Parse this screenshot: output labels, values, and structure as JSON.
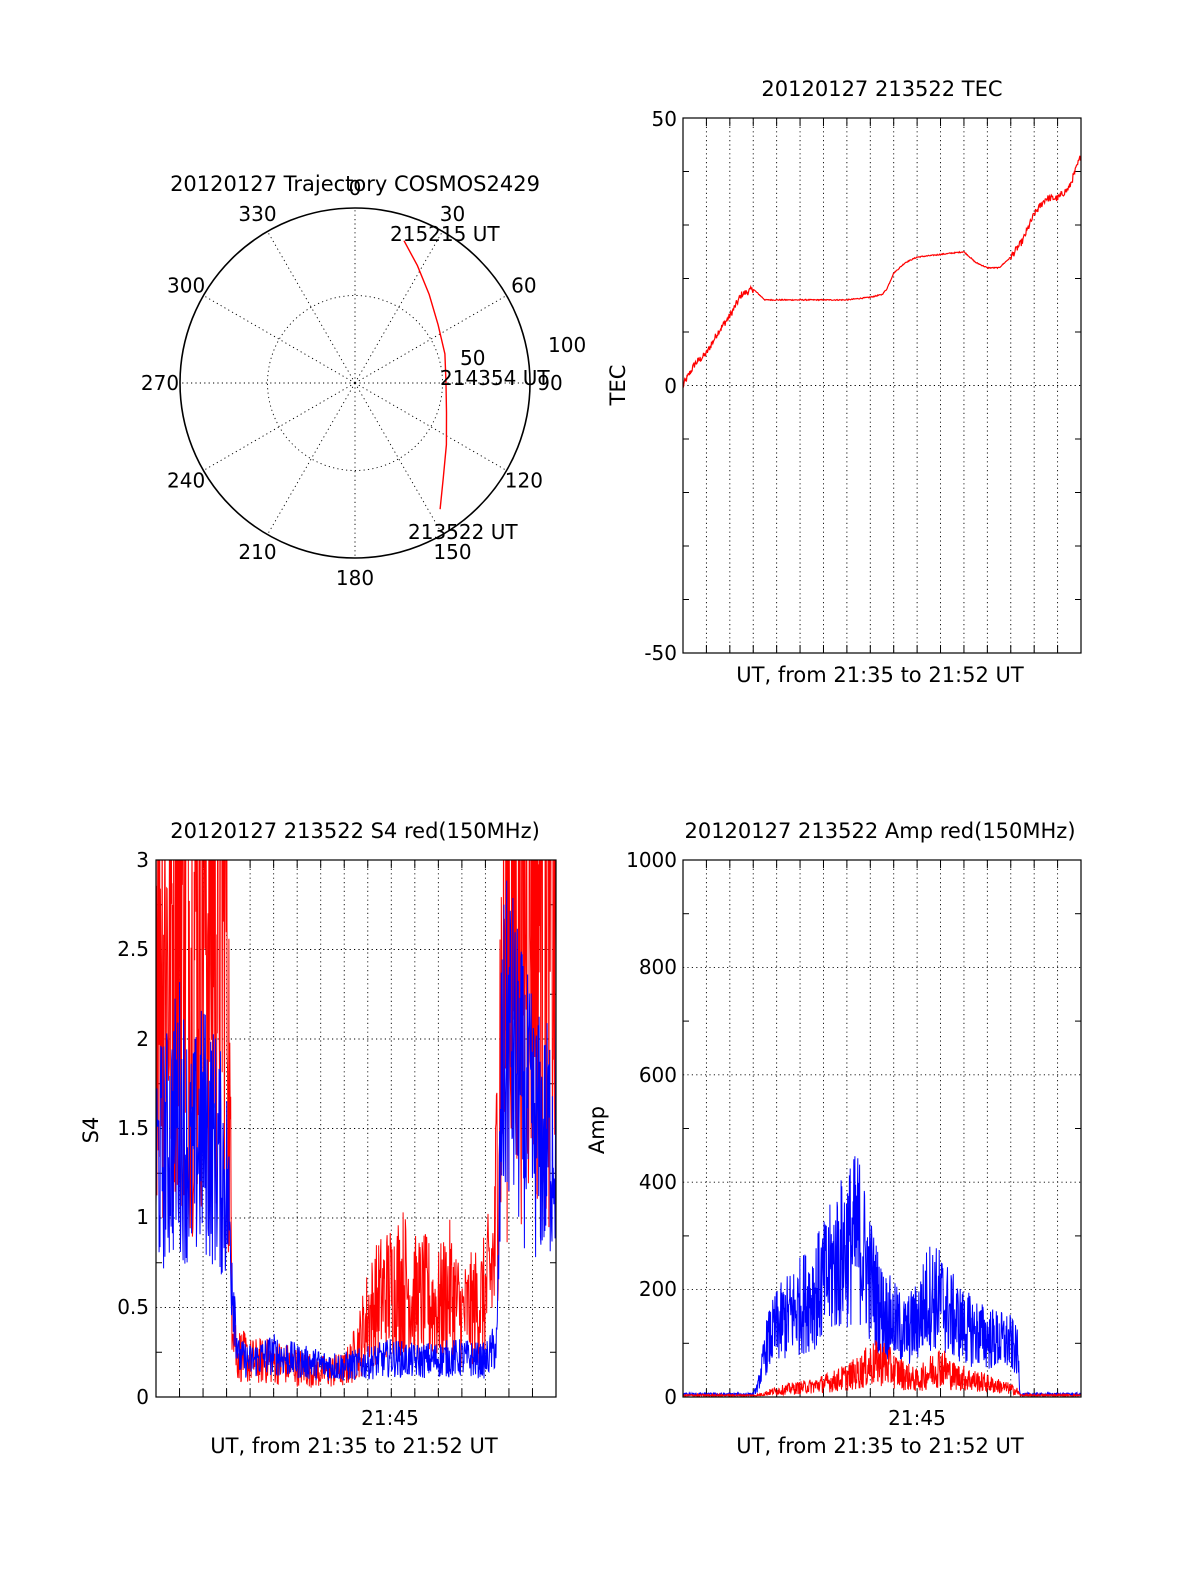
{
  "chart_data": [
    {
      "id": "trajectory",
      "type": "polar",
      "title": "20120127 Trajectory COSMOS2429",
      "angle_labels": [
        "0",
        "30",
        "60",
        "90",
        "120",
        "150",
        "180",
        "210",
        "240",
        "270",
        "300",
        "330"
      ],
      "radius_labels": [
        "50",
        "100"
      ],
      "rlim": [
        0,
        100
      ],
      "grid": true,
      "series": [
        {
          "color": "#ff0000",
          "points": [
            {
              "az": 19,
              "r": 86
            },
            {
              "az": 28,
              "r": 76
            },
            {
              "az": 40,
              "r": 66
            },
            {
              "az": 55,
              "r": 58
            },
            {
              "az": 72,
              "r": 54
            },
            {
              "az": 90,
              "r": 52
            },
            {
              "az": 108,
              "r": 55
            },
            {
              "az": 124,
              "r": 63
            },
            {
              "az": 137,
              "r": 74
            },
            {
              "az": 146,
              "r": 87
            }
          ]
        }
      ],
      "annotations": [
        {
          "text": "215215 UT",
          "az": 19
        },
        {
          "text": "214354 UT",
          "az": 90
        },
        {
          "text": "213522 UT",
          "az": 146
        }
      ]
    },
    {
      "id": "tec",
      "type": "line",
      "title": "20120127 213522 TEC",
      "xlabel": "UT, from 21:35 to 21:52 UT",
      "ylabel": "TEC",
      "xlim": [
        0,
        17
      ],
      "ylim": [
        -50,
        50
      ],
      "yticks": [
        "50",
        "0",
        "-50"
      ],
      "xticks": [],
      "grid": true,
      "series": [
        {
          "color": "#ff0000",
          "noise": 0.6,
          "x": [
            0,
            0.5,
            1.0,
            1.5,
            2.0,
            2.5,
            3.0,
            3.5,
            4.0,
            5.0,
            6.0,
            7.0,
            8.0,
            8.5,
            8.7,
            9.0,
            9.5,
            10.0,
            11.0,
            12.0,
            12.5,
            13.0,
            13.5,
            14.0,
            14.5,
            15.0,
            15.5,
            16.0,
            16.5,
            17.0
          ],
          "y": [
            0,
            4,
            6,
            10,
            13,
            17,
            18,
            16,
            16,
            16,
            16,
            16,
            16.5,
            17,
            18,
            21,
            23,
            24,
            24.5,
            25,
            23,
            22,
            22,
            24,
            27,
            32,
            35,
            35,
            37,
            43
          ]
        }
      ]
    },
    {
      "id": "s4",
      "type": "line",
      "title": "20120127 213522 S4 red(150MHz)",
      "xlabel": "UT, from 21:35 to 21:52 UT",
      "ylabel": "S4",
      "xlim": [
        0,
        17
      ],
      "ylim": [
        0,
        3
      ],
      "yticks": [
        "0",
        "0.5",
        "1",
        "1.5",
        "2",
        "2.5",
        "3"
      ],
      "xticks": [
        {
          "value": 10,
          "label": "21:45"
        }
      ],
      "grid": true,
      "series": [
        {
          "color": "#ff0000",
          "noise": 1.2,
          "x": [
            0,
            0.5,
            1.0,
            1.5,
            2.0,
            2.5,
            3.0,
            3.2,
            3.4,
            4.0,
            5.0,
            6.0,
            7.0,
            8.0,
            8.3,
            8.7,
            9.0,
            9.5,
            10.0,
            10.5,
            11.0,
            11.5,
            12.0,
            12.5,
            13.0,
            13.5,
            14.0,
            14.4,
            14.6,
            15.0,
            15.5,
            16.0,
            16.5,
            17.0
          ],
          "y": [
            2.9,
            2.5,
            2.9,
            2.6,
            2.9,
            2.7,
            2.9,
            0.8,
            0.25,
            0.2,
            0.2,
            0.17,
            0.14,
            0.15,
            0.2,
            0.32,
            0.45,
            0.55,
            0.6,
            0.65,
            0.55,
            0.55,
            0.5,
            0.6,
            0.45,
            0.5,
            0.55,
            0.8,
            2.0,
            2.6,
            2.8,
            2.9,
            2.7,
            2.6
          ]
        },
        {
          "color": "#0000ff",
          "noise": 0.9,
          "x": [
            0,
            0.5,
            1.0,
            1.5,
            2.0,
            2.5,
            3.0,
            3.3,
            3.5,
            4.0,
            5.0,
            6.0,
            7.0,
            8.0,
            9.0,
            10.0,
            11.0,
            12.0,
            13.0,
            14.0,
            14.5,
            14.7,
            15.0,
            15.5,
            16.0,
            16.5,
            17.0
          ],
          "y": [
            1.3,
            1.4,
            1.6,
            1.3,
            1.5,
            1.4,
            1.2,
            0.6,
            0.22,
            0.2,
            0.24,
            0.2,
            0.18,
            0.17,
            0.19,
            0.22,
            0.2,
            0.21,
            0.22,
            0.2,
            0.3,
            1.8,
            2.0,
            1.7,
            1.5,
            1.4,
            1.5
          ]
        }
      ]
    },
    {
      "id": "amp",
      "type": "line",
      "title": "20120127 213522 Amp red(150MHz)",
      "xlabel": "UT, from 21:35 to 21:52 UT",
      "ylabel": "Amp",
      "xlim": [
        0,
        17
      ],
      "ylim": [
        0,
        1000
      ],
      "yticks": [
        "0",
        "200",
        "400",
        "600",
        "800",
        "1000"
      ],
      "xticks": [
        {
          "value": 10,
          "label": "21:45"
        }
      ],
      "grid": true,
      "series": [
        {
          "color": "#0000ff",
          "noise": 0.55,
          "x": [
            0,
            3.0,
            3.2,
            3.6,
            4.0,
            5.0,
            6.0,
            6.5,
            7.0,
            7.5,
            8.0,
            8.5,
            9.0,
            9.5,
            10.0,
            10.5,
            11.0,
            11.5,
            12.0,
            12.5,
            13.0,
            14.0,
            14.3,
            14.4,
            15.0,
            17.0
          ],
          "y": [
            5,
            5,
            20,
            100,
            130,
            170,
            210,
            250,
            280,
            300,
            220,
            160,
            140,
            120,
            140,
            190,
            180,
            150,
            130,
            120,
            110,
            100,
            80,
            5,
            5,
            5
          ]
        },
        {
          "color": "#ff0000",
          "noise": 0.7,
          "x": [
            0,
            3.2,
            3.8,
            4.5,
            5.5,
            6.5,
            7.5,
            8.0,
            8.5,
            9.0,
            9.5,
            10.0,
            10.5,
            11.0,
            11.5,
            12.0,
            13.0,
            14.0,
            14.3,
            14.4,
            17.0
          ],
          "y": [
            3,
            3,
            10,
            15,
            20,
            30,
            45,
            60,
            65,
            50,
            40,
            30,
            45,
            60,
            40,
            35,
            25,
            15,
            10,
            3,
            3
          ]
        }
      ]
    }
  ]
}
